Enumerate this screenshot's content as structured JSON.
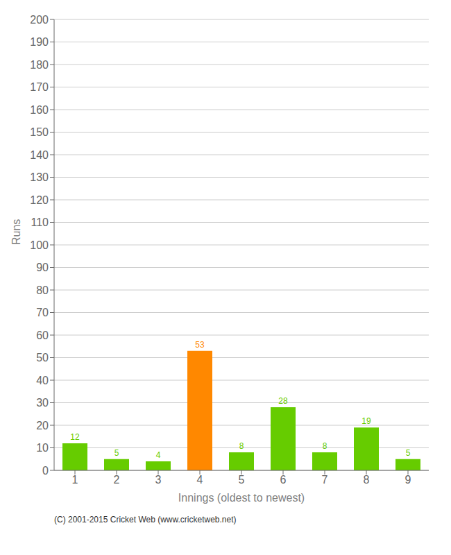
{
  "chart_data": {
    "type": "bar",
    "xlabel": "Innings (oldest to newest)",
    "ylabel": "Runs",
    "categories": [
      "1",
      "2",
      "3",
      "4",
      "5",
      "6",
      "7",
      "8",
      "9"
    ],
    "values": [
      12,
      5,
      4,
      53,
      8,
      28,
      8,
      19,
      5
    ],
    "colors": [
      "#66cc00",
      "#66cc00",
      "#66cc00",
      "#ff8800",
      "#66cc00",
      "#66cc00",
      "#66cc00",
      "#66cc00",
      "#66cc00"
    ],
    "ylim": [
      0,
      200
    ],
    "yticks": [
      0,
      10,
      20,
      30,
      40,
      50,
      60,
      70,
      80,
      90,
      100,
      110,
      120,
      130,
      140,
      150,
      160,
      170,
      180,
      190,
      200
    ],
    "grid": true,
    "data_labels": true,
    "annotations": [
      "(C) 2001-2015 Cricket Web (www.cricketweb.net)"
    ]
  }
}
